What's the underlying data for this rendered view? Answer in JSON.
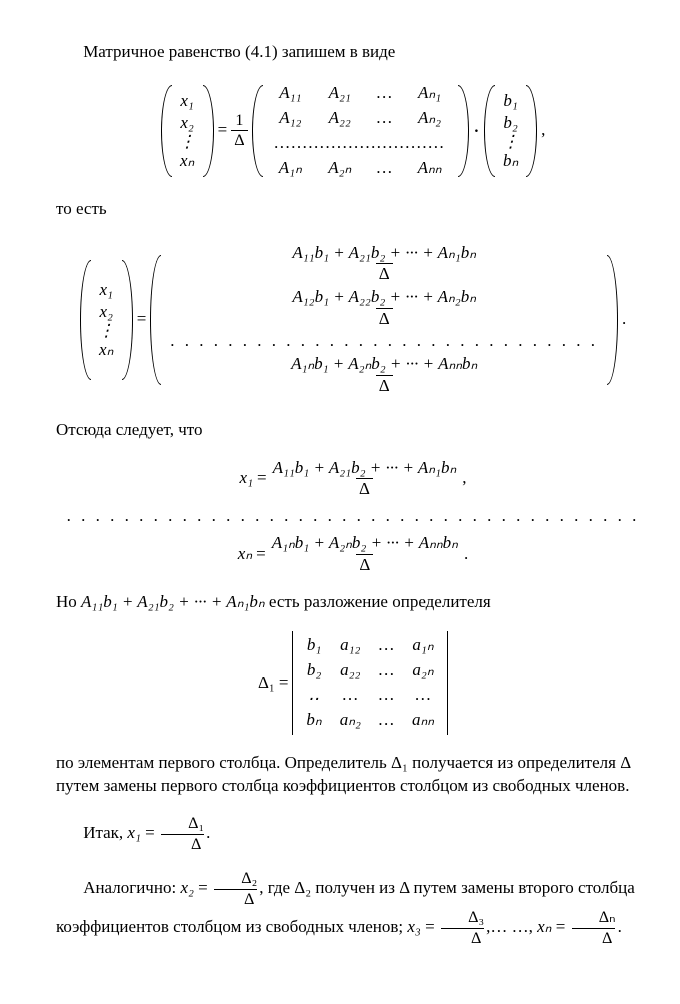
{
  "para1": "Матричное равенство (4.1) запишем в виде",
  "para2": "то есть",
  "para3": "Отсюда следует, что",
  "bigdots": ". . . . . . . . . . . . . . . . . . . . . . . . . . . . . . . . . . . . . . . .",
  "para4_pre": "Но ",
  "para4_expr": "A₁₁b₁ + A₂₁b₂ + ··· + Aₙ₁bₙ",
  "para4_post": " есть разложение определителя",
  "para5": "по элементам первого столбца. Определитель Δ₁ получается из определителя Δ путем замены первого столбца коэффициентов столбцом из свободных членов.",
  "para6": "Итак, ",
  "para7_a": "Аналогично: ",
  "para7_b": ", где Δ₂ получен из Δ путем замены второго столбца коэффициентов столбцом из свободных членов; ",
  "para7_c": ",… …, ",
  "vec_x": [
    "x₁",
    "x₂",
    "⋮",
    "xₙ"
  ],
  "vec_b": [
    "b₁",
    "b₂",
    "⋮",
    "bₙ"
  ],
  "frac_1_over_delta": {
    "num": "1",
    "den": "Δ"
  },
  "matrix_A": {
    "rows": [
      [
        "A₁₁",
        "A₂₁",
        "…",
        "Aₙ₁"
      ],
      [
        "A₁₂",
        "A₂₂",
        "…",
        "Aₙ₂"
      ],
      [
        "…………………………",
        "",
        "",
        ""
      ],
      [
        "A₁ₙ",
        "A₂ₙ",
        "…",
        "Aₙₙ"
      ]
    ]
  },
  "cdot": "·",
  "comma": ",",
  "period": ".",
  "eq_sign": "=",
  "big_result_rows": [
    {
      "num": "A₁₁b₁ + A₂₁b₂ + ··· + Aₙ₁bₙ",
      "den": "Δ"
    },
    {
      "num": "A₁₂b₁ + A₂₂b₂ + ··· + Aₙ₂bₙ",
      "den": "Δ"
    },
    {
      "dots": ". . . . . . . . . . . . . . . . . . . . . . . . . . . . . ."
    },
    {
      "num": "A₁ₙb₁ + A₂ₙb₂ + ··· + Aₙₙbₙ",
      "den": "Δ"
    }
  ],
  "line_x1": {
    "lhs": "x₁",
    "num": "A₁₁b₁ + A₂₁b₂ + ··· + Aₙ₁bₙ",
    "den": "Δ",
    "tail": ","
  },
  "line_xn": {
    "lhs": "xₙ",
    "num": "A₁ₙb₁ + A₂ₙb₂ + ··· + Aₙₙbₙ",
    "den": "Δ",
    "tail": "."
  },
  "det_label": "Δ₁",
  "det_rows": [
    [
      "b₁",
      "a₁₂",
      "…",
      "a₁ₙ"
    ],
    [
      "b₂",
      "a₂₂",
      "…",
      "a₂ₙ"
    ],
    [
      "‥",
      "…",
      "…",
      "…"
    ],
    [
      "bₙ",
      "aₙ₂",
      "…",
      "aₙₙ"
    ]
  ],
  "x1_frac": {
    "lhs": "x₁",
    "num": "Δ₁",
    "den": "Δ",
    "tail": "."
  },
  "x2_frac": {
    "lhs": "x₂",
    "num": "Δ₂",
    "den": "Δ"
  },
  "x3_frac": {
    "lhs": "x₃",
    "num": "Δ₃",
    "den": "Δ"
  },
  "xn_frac": {
    "lhs": "xₙ",
    "num": "Δₙ",
    "den": "Δ",
    "tail": "."
  }
}
